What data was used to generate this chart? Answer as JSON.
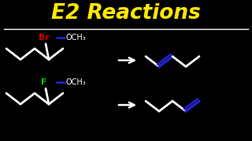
{
  "title": "E2 Reactions",
  "title_color": "#FFE800",
  "title_fontsize": 19,
  "bg_color": "#000000",
  "separator_color": "#FFFFFF",
  "arrow_color": "#FFFFFF",
  "chain_color": "#FFFFFF",
  "double_bond_color": "#2222CC",
  "br_color": "#CC0000",
  "f_color": "#00CC00",
  "reagent_color": "#FFFFFF",
  "br_label": "Br",
  "f_label": "F",
  "reagent_label": "OCH₃",
  "minus_label": "—"
}
